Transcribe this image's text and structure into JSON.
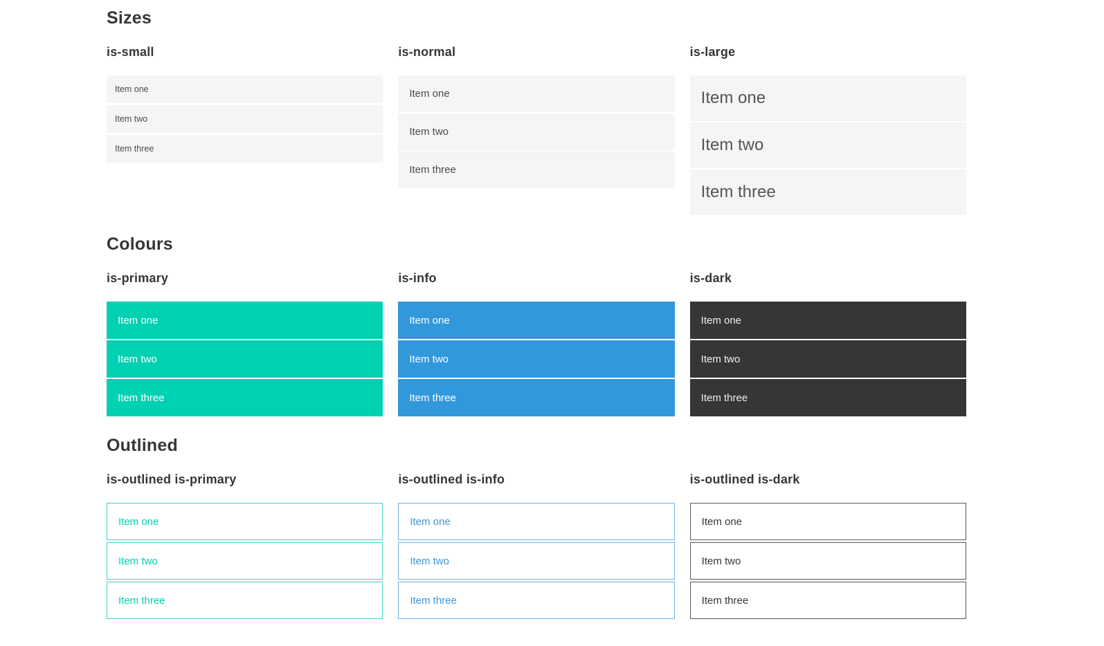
{
  "page": {
    "colors": {
      "primary": "#00d1b2",
      "info": "#3298dc",
      "dark": "#363636",
      "light_item_background": "#f5f5f5",
      "heading_text": "#363636",
      "item_text": "#4a4a4a"
    },
    "sections": [
      {
        "title": "Sizes",
        "columns": [
          {
            "label": "is-small",
            "items": [
              "Item one",
              "Item two",
              "Item three"
            ]
          },
          {
            "label": "is-normal",
            "items": [
              "Item one",
              "Item two",
              "Item three"
            ]
          },
          {
            "label": "is-large",
            "items": [
              "Item one",
              "Item two",
              "Item three"
            ]
          }
        ]
      },
      {
        "title": "Colours",
        "columns": [
          {
            "label": "is-primary",
            "items": [
              "Item one",
              "Item two",
              "Item three"
            ]
          },
          {
            "label": "is-info",
            "items": [
              "Item one",
              "Item two",
              "Item three"
            ]
          },
          {
            "label": "is-dark",
            "items": [
              "Item one",
              "Item two",
              "Item three"
            ]
          }
        ]
      },
      {
        "title": "Outlined",
        "columns": [
          {
            "label": "is-outlined is-primary",
            "items": [
              "Item one",
              "Item two",
              "Item three"
            ]
          },
          {
            "label": "is-outlined is-info",
            "items": [
              "Item one",
              "Item two",
              "Item three"
            ]
          },
          {
            "label": "is-outlined is-dark",
            "items": [
              "Item one",
              "Item two",
              "Item three"
            ]
          }
        ]
      }
    ]
  }
}
